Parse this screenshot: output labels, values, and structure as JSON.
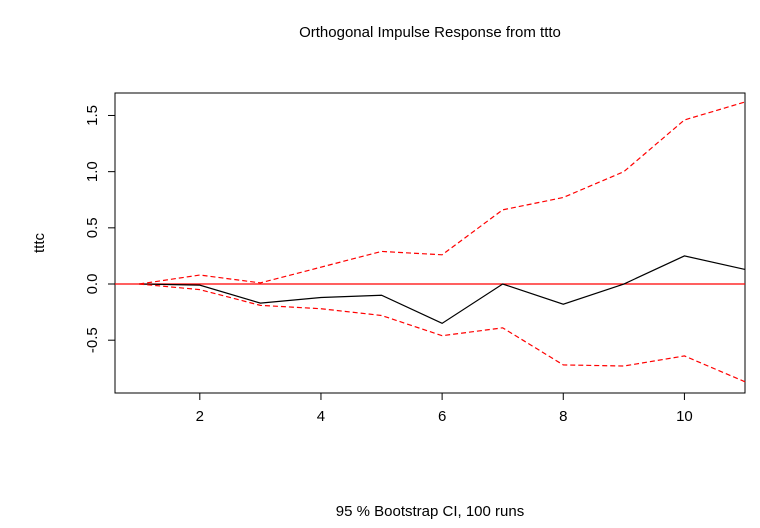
{
  "chart_data": {
    "type": "line",
    "title": "Orthogonal Impulse Response from ttto",
    "y_label": "tttc",
    "x_label": "95 % Bootstrap CI, 100 runs",
    "x": [
      1,
      2,
      3,
      4,
      5,
      6,
      7,
      8,
      9,
      10,
      11
    ],
    "series": [
      {
        "color": "#000000",
        "dashed": false,
        "values": [
          0,
          -0.01,
          -0.17,
          -0.12,
          -0.1,
          -0.35,
          0.0,
          -0.18,
          0.0,
          0.25,
          0.13
        ]
      },
      {
        "color": "#ff0000",
        "dashed": true,
        "values": [
          0,
          0.08,
          0.01,
          0.15,
          0.29,
          0.26,
          0.66,
          0.77,
          1.0,
          1.46,
          1.62
        ]
      },
      {
        "color": "#ff0000",
        "dashed": true,
        "values": [
          0,
          -0.05,
          -0.19,
          -0.22,
          -0.28,
          -0.46,
          -0.39,
          -0.72,
          -0.73,
          -0.64,
          -0.87
        ]
      }
    ],
    "reference_line": {
      "value": 0,
      "color": "#ff0000"
    },
    "xlim": [
      0.6,
      11
    ],
    "xticks": [
      2,
      4,
      6,
      8,
      10
    ],
    "ylim": [
      -0.97,
      1.7
    ],
    "yticks": [
      {
        "value": -0.5,
        "label": "-0.5"
      },
      {
        "value": 0,
        "label": "0.0"
      },
      {
        "value": 0.5,
        "label": "0.5"
      },
      {
        "value": 1,
        "label": "1.0"
      },
      {
        "value": 1.5,
        "label": "1.5"
      }
    ]
  }
}
